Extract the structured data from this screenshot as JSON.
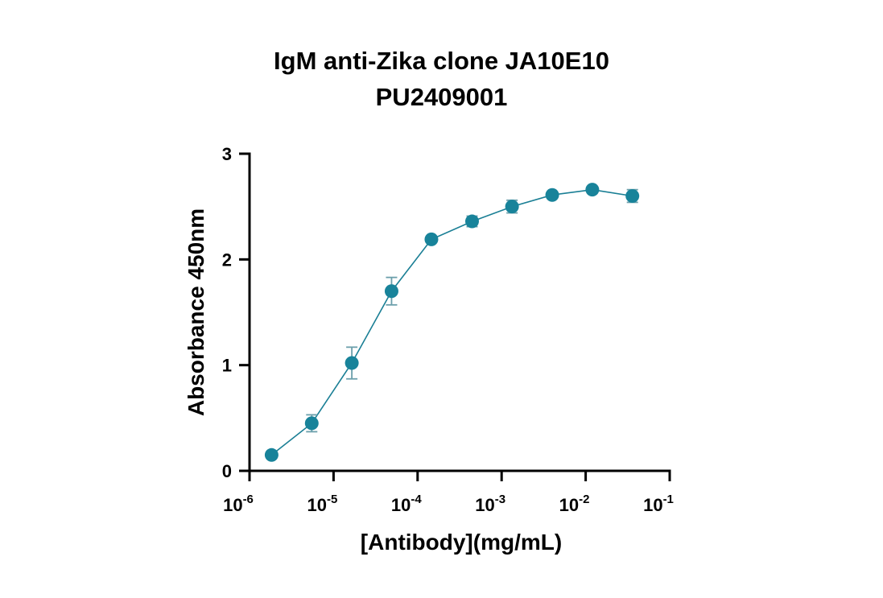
{
  "chart_data": {
    "type": "scatter",
    "title": [
      "IgM anti-Zika clone JA10E10",
      "PU2409001"
    ],
    "xlabel": "[Antibody](mg/mL)",
    "ylabel": "Absorbance 450nm",
    "x_scale": "log10",
    "xlim": [
      1e-06,
      0.1
    ],
    "ylim": [
      0,
      3
    ],
    "x_ticks": [
      {
        "value": 1e-06,
        "base": "10",
        "exp": "-6"
      },
      {
        "value": 1e-05,
        "base": "10",
        "exp": "-5"
      },
      {
        "value": 0.0001,
        "base": "10",
        "exp": "-4"
      },
      {
        "value": 0.001,
        "base": "10",
        "exp": "-3"
      },
      {
        "value": 0.01,
        "base": "10",
        "exp": "-2"
      },
      {
        "value": 0.1,
        "base": "10",
        "exp": "-1"
      }
    ],
    "y_ticks": [
      {
        "value": 0,
        "label": "0"
      },
      {
        "value": 1,
        "label": "1"
      },
      {
        "value": 2,
        "label": "2"
      },
      {
        "value": 3,
        "label": "3"
      }
    ],
    "grid": false,
    "legend": "none",
    "color": "#18839a",
    "error_color": "#6b9fab",
    "series": [
      {
        "points": [
          {
            "x": 1.83e-06,
            "y": 0.15,
            "err": 0.0
          },
          {
            "x": 5.5e-06,
            "y": 0.45,
            "err": 0.08
          },
          {
            "x": 1.65e-05,
            "y": 1.02,
            "err": 0.15
          },
          {
            "x": 4.9e-05,
            "y": 1.7,
            "err": 0.13
          },
          {
            "x": 0.000146,
            "y": 2.19,
            "err": 0.02
          },
          {
            "x": 0.000445,
            "y": 2.36,
            "err": 0.05
          },
          {
            "x": 0.00133,
            "y": 2.5,
            "err": 0.06
          },
          {
            "x": 0.004,
            "y": 2.61,
            "err": 0.02
          },
          {
            "x": 0.012,
            "y": 2.66,
            "err": 0.02
          },
          {
            "x": 0.036,
            "y": 2.6,
            "err": 0.06
          }
        ]
      }
    ]
  }
}
